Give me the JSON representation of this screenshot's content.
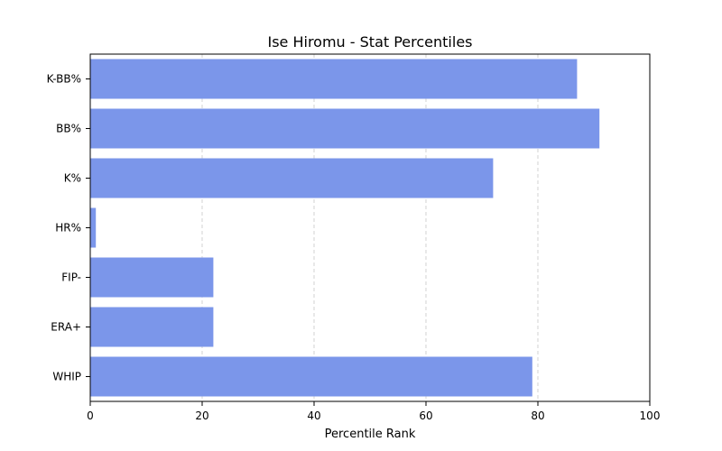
{
  "chart_data": {
    "type": "bar",
    "orientation": "horizontal",
    "title": "Ise Hiromu - Stat Percentiles",
    "xlabel": "Percentile Rank",
    "ylabel": "",
    "categories": [
      "K-BB%",
      "BB%",
      "K%",
      "HR%",
      "FIP-",
      "ERA+",
      "WHIP"
    ],
    "values": [
      87,
      91,
      72,
      1,
      22,
      22,
      79
    ],
    "xlim": [
      0,
      100
    ],
    "xticks": [
      0,
      20,
      40,
      60,
      80,
      100
    ],
    "grid": "x-dashed",
    "bar_color": "#7b96ea"
  }
}
